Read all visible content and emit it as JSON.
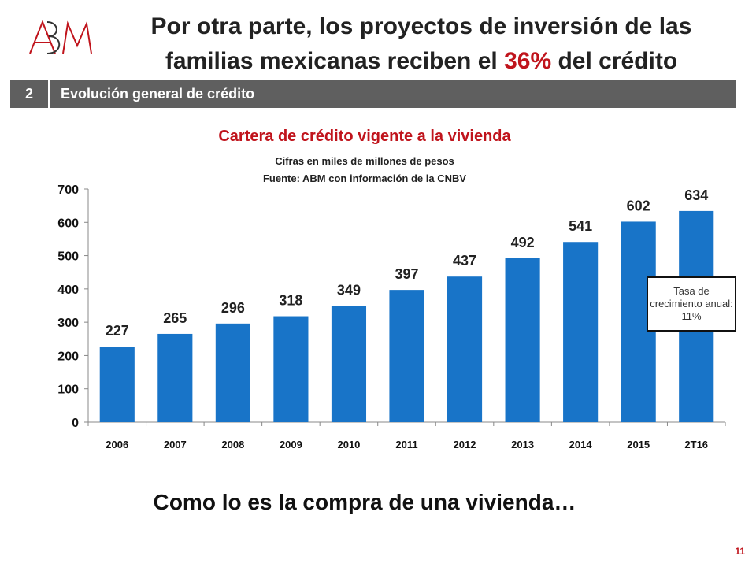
{
  "header": {
    "logo_text": "ABM",
    "title_part1": "Por otra parte, los proyectos de inversión de las familias mexicanas reciben el ",
    "title_highlight": "36%",
    "title_part2": " del crédito"
  },
  "section": {
    "number": "2",
    "label": "Evolución general de crédito"
  },
  "chart_data": {
    "type": "bar",
    "title": "Cartera de crédito vigente a la vivienda",
    "subtitle": "Cifras en miles de millones de pesos",
    "source": "Fuente: ABM con información de la CNBV",
    "categories": [
      "2006",
      "2007",
      "2008",
      "2009",
      "2010",
      "2011",
      "2012",
      "2013",
      "2014",
      "2015",
      "2T16"
    ],
    "values": [
      227,
      265,
      296,
      318,
      349,
      397,
      437,
      492,
      541,
      602,
      634
    ],
    "ylim": [
      0,
      700
    ],
    "yticks": [
      0,
      100,
      200,
      300,
      400,
      500,
      600,
      700
    ],
    "xlabel": "",
    "ylabel": "",
    "grid": false,
    "data_labels": true,
    "bar_color": "#1874c8",
    "annotation": "Tasa de crecimiento anual: 11%"
  },
  "colors": {
    "accent": "#c0141c",
    "bar": "#1874c8",
    "section_bar": "#5f5f5f"
  },
  "footer": {
    "text": "Como lo es la compra de una vivienda…"
  },
  "page_number": "11"
}
